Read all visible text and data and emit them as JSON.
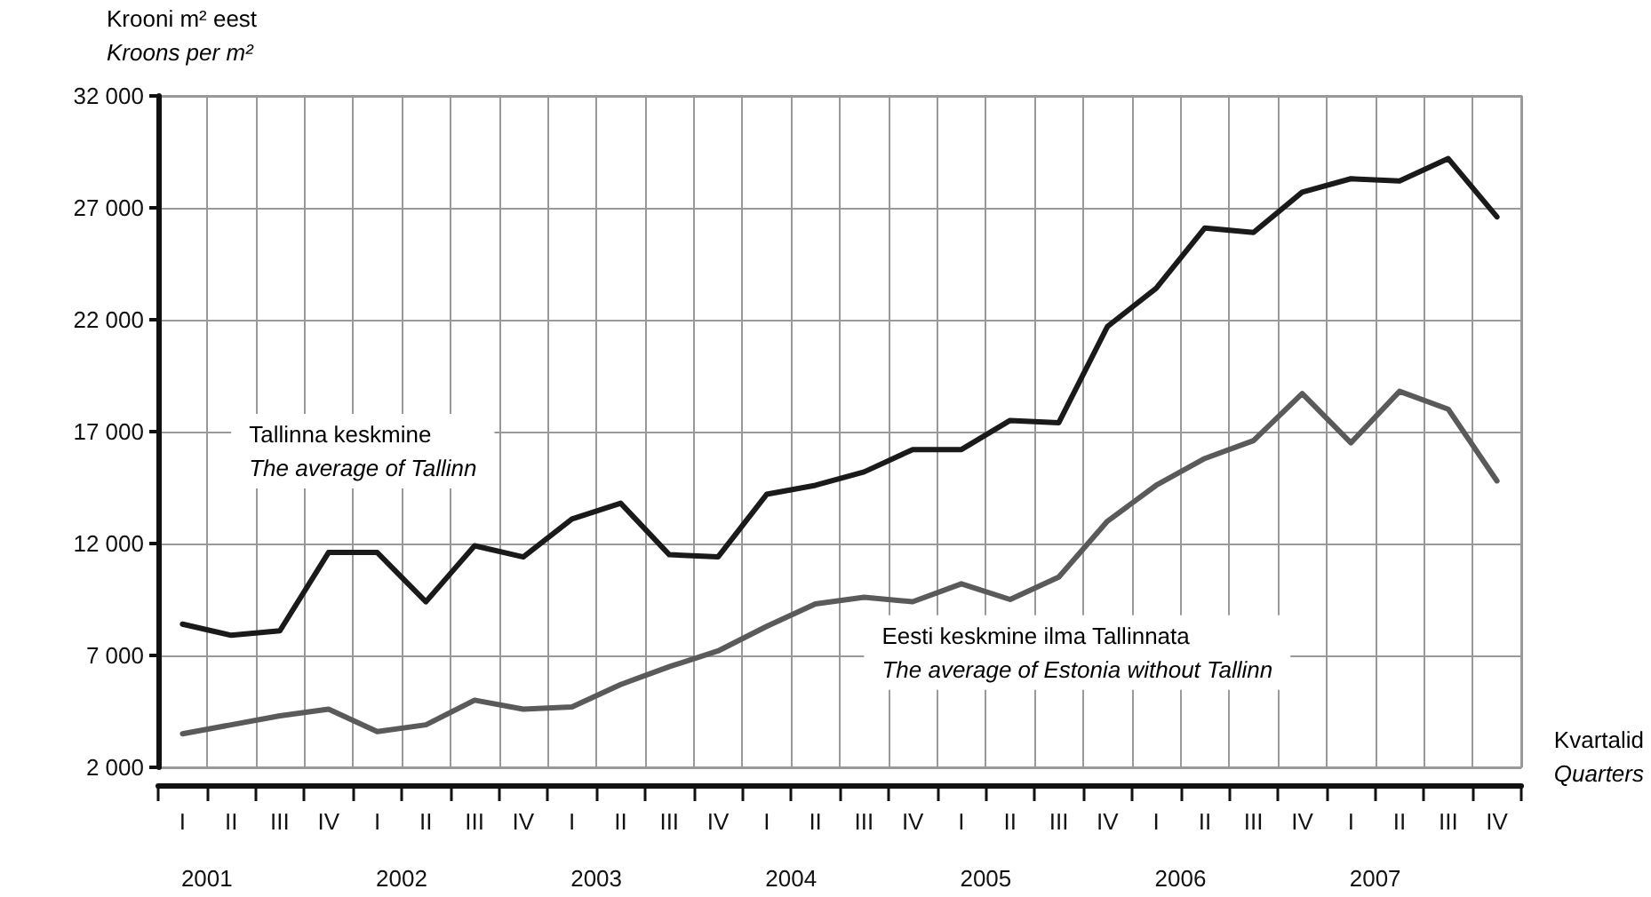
{
  "chart_data": {
    "type": "line",
    "ylabel": "Krooni m² eest\nKroons per m²",
    "xlabel": "Kvartalid\nQuarters",
    "categories": [
      "I",
      "II",
      "III",
      "IV",
      "I",
      "II",
      "III",
      "IV",
      "I",
      "II",
      "III",
      "IV",
      "I",
      "II",
      "III",
      "IV",
      "I",
      "II",
      "III",
      "IV",
      "I",
      "II",
      "III",
      "IV",
      "I",
      "II",
      "III",
      "IV"
    ],
    "annotations": [
      "2001",
      "2002",
      "2003",
      "2004",
      "2005",
      "2006",
      "2007"
    ],
    "series": [
      {
        "name": "Tallinna keskmine\nThe average of Tallinn",
        "color": "#1a1a1a",
        "values": [
          8400,
          7900,
          8100,
          11600,
          11600,
          9400,
          11900,
          11400,
          13100,
          13800,
          11500,
          11400,
          14200,
          14600,
          15200,
          16200,
          16200,
          17500,
          17400,
          21700,
          23400,
          26100,
          25900,
          27700,
          28300,
          28200,
          29200,
          26600
        ]
      },
      {
        "name": "Eesti keskmine ilma Tallinnata\nThe average of Estonia without Tallinn",
        "color": "#5a5a5a",
        "values": [
          3500,
          3900,
          4300,
          4600,
          3600,
          3900,
          5000,
          4600,
          4700,
          5700,
          6500,
          7200,
          8300,
          9300,
          9600,
          9400,
          10200,
          9500,
          10500,
          13000,
          14600,
          15800,
          16600,
          18700,
          16500,
          18800,
          18000,
          14800
        ]
      }
    ],
    "ylim": [
      2000,
      32000
    ],
    "yticks": [
      {
        "value": 2000,
        "label": "2 000"
      },
      {
        "value": 7000,
        "label": "7 000"
      },
      {
        "value": 12000,
        "label": "12 000"
      },
      {
        "value": 17000,
        "label": "17 000"
      },
      {
        "value": 22000,
        "label": "22 000"
      },
      {
        "value": 27000,
        "label": "27 000"
      },
      {
        "value": 32000,
        "label": "32 000"
      }
    ],
    "grid": true,
    "legend": false,
    "marker": "none",
    "line_style": "solid"
  }
}
